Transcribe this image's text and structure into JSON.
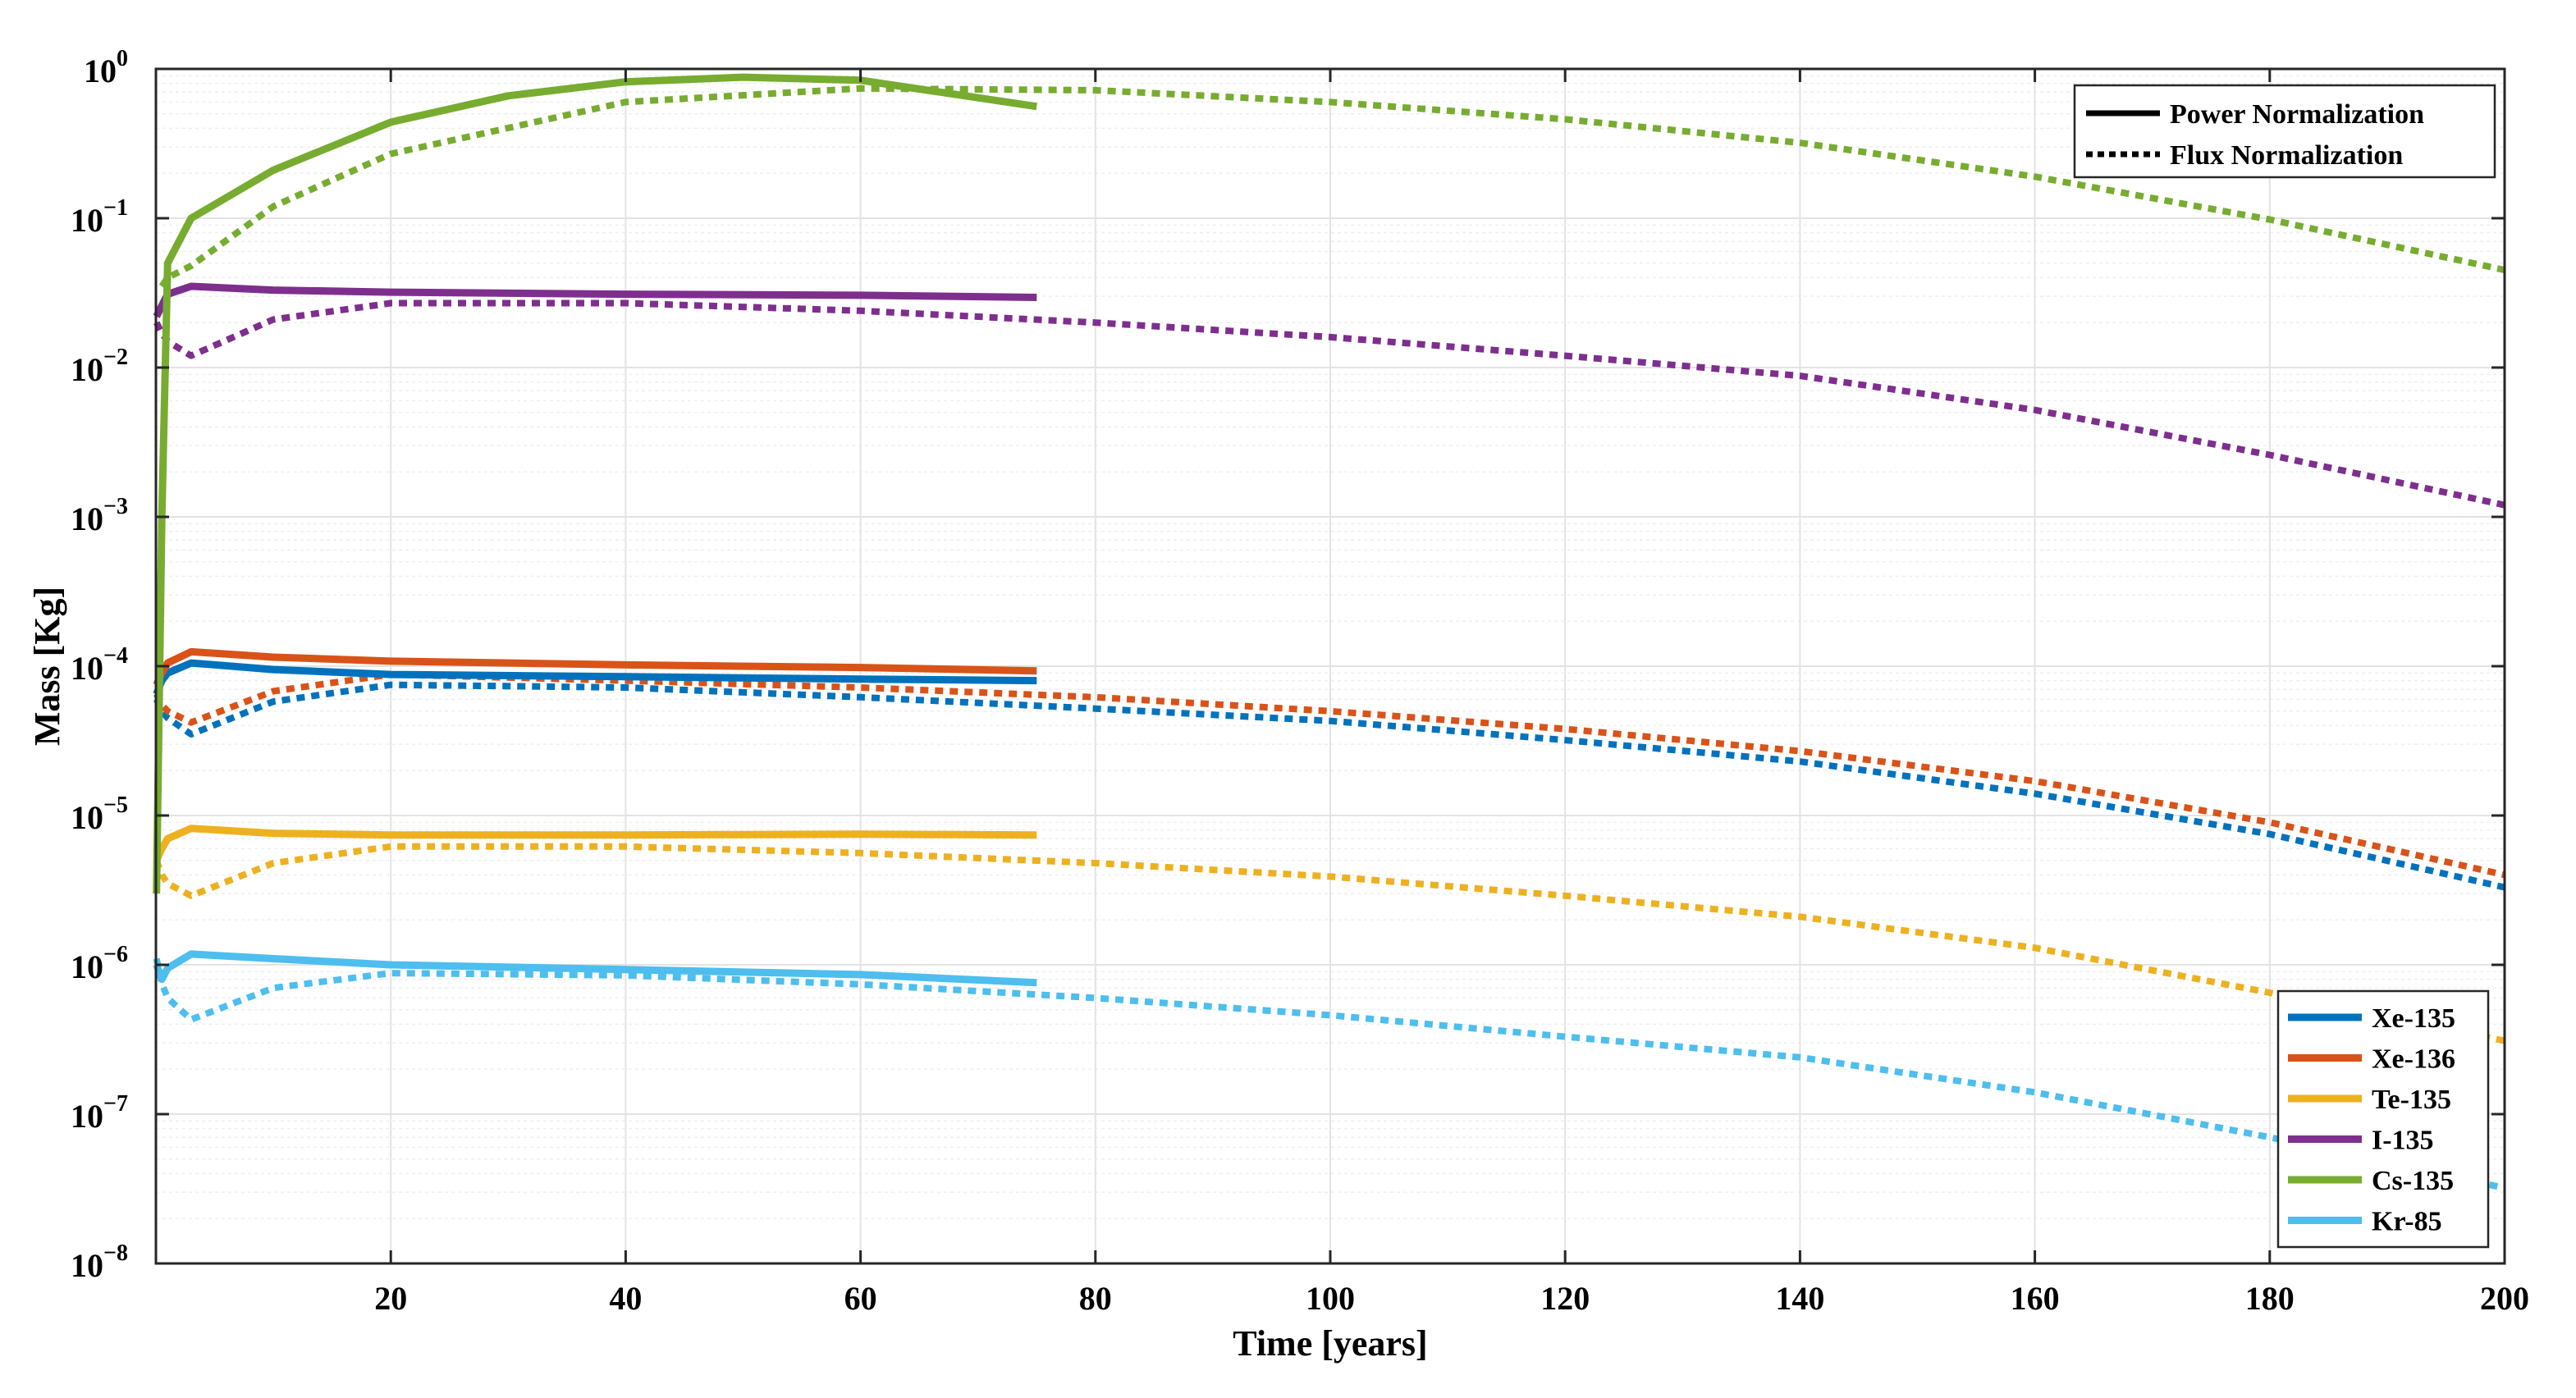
{
  "chart_data": {
    "type": "line",
    "title": "",
    "xlabel": "Time [years]",
    "ylabel": "Mass [Kg]",
    "xlim": [
      0,
      200
    ],
    "ylim": [
      1e-08,
      1
    ],
    "yscale": "log",
    "grid": true,
    "minor_grid": true,
    "x_ticks": [
      20,
      40,
      60,
      80,
      100,
      120,
      140,
      160,
      180,
      200
    ],
    "x_tick_labels": [
      "20",
      "40",
      "60",
      "80",
      "100",
      "120",
      "140",
      "160",
      "180",
      "200"
    ],
    "y_ticks": [
      {
        "value": 1e-08,
        "base": "10",
        "exp": "−8"
      },
      {
        "value": 1e-07,
        "base": "10",
        "exp": "−7"
      },
      {
        "value": 1e-06,
        "base": "10",
        "exp": "−6"
      },
      {
        "value": 1e-05,
        "base": "10",
        "exp": "−5"
      },
      {
        "value": 0.0001,
        "base": "10",
        "exp": "−4"
      },
      {
        "value": 0.001,
        "base": "10",
        "exp": "−3"
      },
      {
        "value": 0.01,
        "base": "10",
        "exp": "−2"
      },
      {
        "value": 0.1,
        "base": "10",
        "exp": "−1"
      },
      {
        "value": 1,
        "base": "10",
        "exp": "0"
      }
    ],
    "style_legend": {
      "placement": "top-right",
      "entries": [
        {
          "label": "Power Normalization",
          "style": "solid"
        },
        {
          "label": "Flux Normalization",
          "style": "dotted"
        }
      ]
    },
    "isotope_legend": {
      "placement": "bottom-right",
      "entries": [
        {
          "label": "Xe-135",
          "color": "#0072BD"
        },
        {
          "label": "Xe-136",
          "color": "#D95319"
        },
        {
          "label": "Te-135",
          "color": "#EDB120"
        },
        {
          "label": "I-135",
          "color": "#7E2F8E"
        },
        {
          "label": "Cs-135",
          "color": "#77AC30"
        },
        {
          "label": "Kr-85",
          "color": "#4DBEEE"
        }
      ]
    },
    "series": [
      {
        "name": "Xe-135",
        "normalization": "Power Normalization",
        "style": "solid",
        "color": "#0072BD",
        "x": [
          0.05,
          0.5,
          1,
          3,
          10,
          20,
          40,
          60,
          75
        ],
        "y": [
          6.5e-05,
          8e-05,
          9e-05,
          0.000105,
          9.5e-05,
          8.8e-05,
          8.5e-05,
          8.2e-05,
          8e-05
        ]
      },
      {
        "name": "Xe-135",
        "normalization": "Flux Normalization",
        "style": "dotted",
        "color": "#0072BD",
        "x": [
          0.05,
          0.5,
          1,
          3,
          10,
          20,
          40,
          60,
          80,
          100,
          120,
          140,
          160,
          180,
          200
        ],
        "y": [
          6e-05,
          5e-05,
          4.5e-05,
          3.5e-05,
          5.8e-05,
          7.5e-05,
          7.2e-05,
          6.2e-05,
          5.2e-05,
          4.3e-05,
          3.2e-05,
          2.3e-05,
          1.4e-05,
          7.5e-06,
          3.3e-06
        ]
      },
      {
        "name": "Xe-136",
        "normalization": "Power Normalization",
        "style": "solid",
        "color": "#D95319",
        "x": [
          0.05,
          0.5,
          1,
          3,
          10,
          20,
          40,
          60,
          75
        ],
        "y": [
          7.5e-05,
          9e-05,
          0.000105,
          0.000125,
          0.000115,
          0.000108,
          0.000102,
          9.8e-05,
          9.3e-05
        ]
      },
      {
        "name": "Xe-136",
        "normalization": "Flux Normalization",
        "style": "dotted",
        "color": "#D95319",
        "x": [
          0.05,
          0.5,
          1,
          3,
          10,
          20,
          40,
          60,
          80,
          100,
          120,
          140,
          160,
          180,
          200
        ],
        "y": [
          6.5e-05,
          5.5e-05,
          5e-05,
          4.2e-05,
          6.8e-05,
          8.8e-05,
          8e-05,
          7.2e-05,
          6.2e-05,
          5e-05,
          3.8e-05,
          2.7e-05,
          1.7e-05,
          9e-06,
          4e-06
        ]
      },
      {
        "name": "Te-135",
        "normalization": "Power Normalization",
        "style": "solid",
        "color": "#EDB120",
        "x": [
          0.05,
          0.5,
          1,
          3,
          10,
          20,
          40,
          60,
          75
        ],
        "y": [
          5e-06,
          6e-06,
          7e-06,
          8.2e-06,
          7.6e-06,
          7.4e-06,
          7.4e-06,
          7.5e-06,
          7.4e-06
        ]
      },
      {
        "name": "Te-135",
        "normalization": "Flux Normalization",
        "style": "dotted",
        "color": "#EDB120",
        "x": [
          0.05,
          0.5,
          1,
          3,
          10,
          20,
          40,
          60,
          80,
          100,
          120,
          140,
          160,
          180,
          200
        ],
        "y": [
          5e-06,
          4e-06,
          3.5e-06,
          2.9e-06,
          4.8e-06,
          6.2e-06,
          6.2e-06,
          5.6e-06,
          4.8e-06,
          3.9e-06,
          2.9e-06,
          2.1e-06,
          1.3e-06,
          6.5e-07,
          3.1e-07
        ]
      },
      {
        "name": "I-135",
        "normalization": "Power Normalization",
        "style": "solid",
        "color": "#7E2F8E",
        "x": [
          0.05,
          0.5,
          1,
          3,
          10,
          20,
          40,
          60,
          75
        ],
        "y": [
          0.022,
          0.026,
          0.031,
          0.035,
          0.033,
          0.032,
          0.031,
          0.0305,
          0.0295
        ]
      },
      {
        "name": "I-135",
        "normalization": "Flux Normalization",
        "style": "dotted",
        "color": "#7E2F8E",
        "x": [
          0.05,
          0.5,
          1,
          3,
          10,
          20,
          40,
          60,
          80,
          100,
          120,
          140,
          160,
          180,
          200
        ],
        "y": [
          0.02,
          0.017,
          0.015,
          0.012,
          0.021,
          0.027,
          0.027,
          0.024,
          0.02,
          0.016,
          0.012,
          0.0088,
          0.0052,
          0.0026,
          0.0012
        ]
      },
      {
        "name": "Cs-135",
        "normalization": "Power Normalization",
        "style": "solid",
        "color": "#77AC30",
        "x": [
          0.05,
          0.5,
          1,
          3,
          10,
          20,
          30,
          40,
          50,
          60,
          75
        ],
        "y": [
          3e-06,
          0.001,
          0.05,
          0.1,
          0.21,
          0.44,
          0.66,
          0.82,
          0.88,
          0.84,
          0.56
        ]
      },
      {
        "name": "Cs-135",
        "normalization": "Flux Normalization",
        "style": "dotted",
        "color": "#77AC30",
        "x": [
          0.5,
          1,
          3,
          10,
          20,
          40,
          60,
          80,
          100,
          120,
          140,
          160,
          180,
          200
        ],
        "y": [
          0.035,
          0.04,
          0.048,
          0.12,
          0.27,
          0.6,
          0.74,
          0.72,
          0.6,
          0.46,
          0.32,
          0.19,
          0.098,
          0.045
        ]
      },
      {
        "name": "Kr-85",
        "normalization": "Power Normalization",
        "style": "solid",
        "color": "#4DBEEE",
        "x": [
          0.05,
          0.5,
          1,
          3,
          10,
          20,
          40,
          60,
          75
        ],
        "y": [
          1e-06,
          8e-07,
          9.5e-07,
          1.18e-06,
          1.1e-06,
          1e-06,
          9.3e-07,
          8.6e-07,
          7.6e-07
        ]
      },
      {
        "name": "Kr-85",
        "normalization": "Flux Normalization",
        "style": "dotted",
        "color": "#4DBEEE",
        "x": [
          0.05,
          0.5,
          1,
          3,
          10,
          20,
          40,
          60,
          80,
          100,
          120,
          140,
          160,
          180,
          200
        ],
        "y": [
          1.1e-06,
          7.5e-07,
          6e-07,
          4.3e-07,
          7e-07,
          8.8e-07,
          8.5e-07,
          7.4e-07,
          6e-07,
          4.6e-07,
          3.3e-07,
          2.4e-07,
          1.4e-07,
          7e-08,
          3.2e-08
        ]
      }
    ]
  }
}
